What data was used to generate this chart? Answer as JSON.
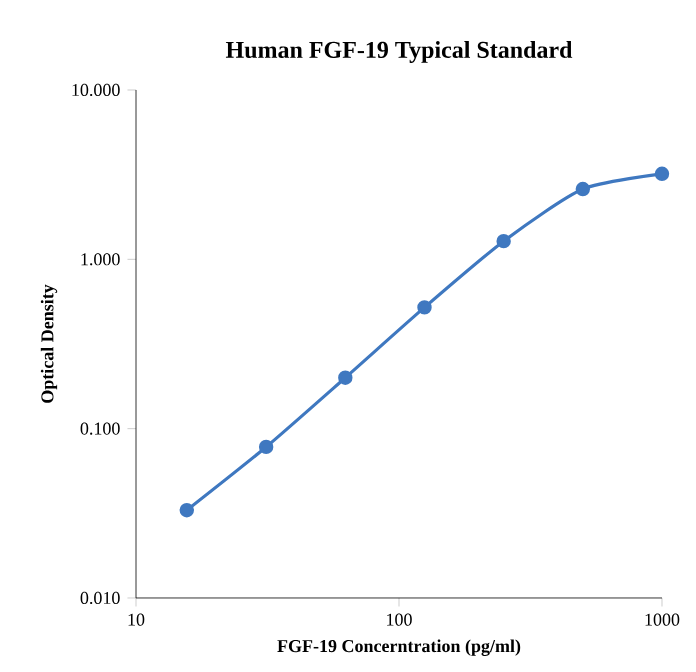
{
  "chart_data": {
    "type": "line",
    "title": "Human FGF-19 Typical Standard",
    "xlabel": "FGF-19 Concerntration (pg/ml)",
    "ylabel": "Optical Density",
    "log": "xy",
    "x": [
      15.6,
      31.25,
      62.5,
      125,
      250,
      500,
      1000
    ],
    "series": [
      {
        "color": "#3f78c0",
        "values": [
          0.033,
          0.078,
          0.2,
          0.52,
          1.28,
          2.6,
          3.2
        ]
      }
    ],
    "marker": "circle",
    "line_style": "solid",
    "xlim": [
      10,
      1000
    ],
    "xticks": [
      10,
      100,
      1000
    ],
    "ylim": [
      0.01,
      10
    ],
    "yticks": [
      {
        "value": 0.01,
        "label": "0.010"
      },
      {
        "value": 0.1,
        "label": "0.100"
      },
      {
        "value": 1,
        "label": "1.000"
      },
      {
        "value": 10,
        "label": "10.000"
      }
    ]
  }
}
